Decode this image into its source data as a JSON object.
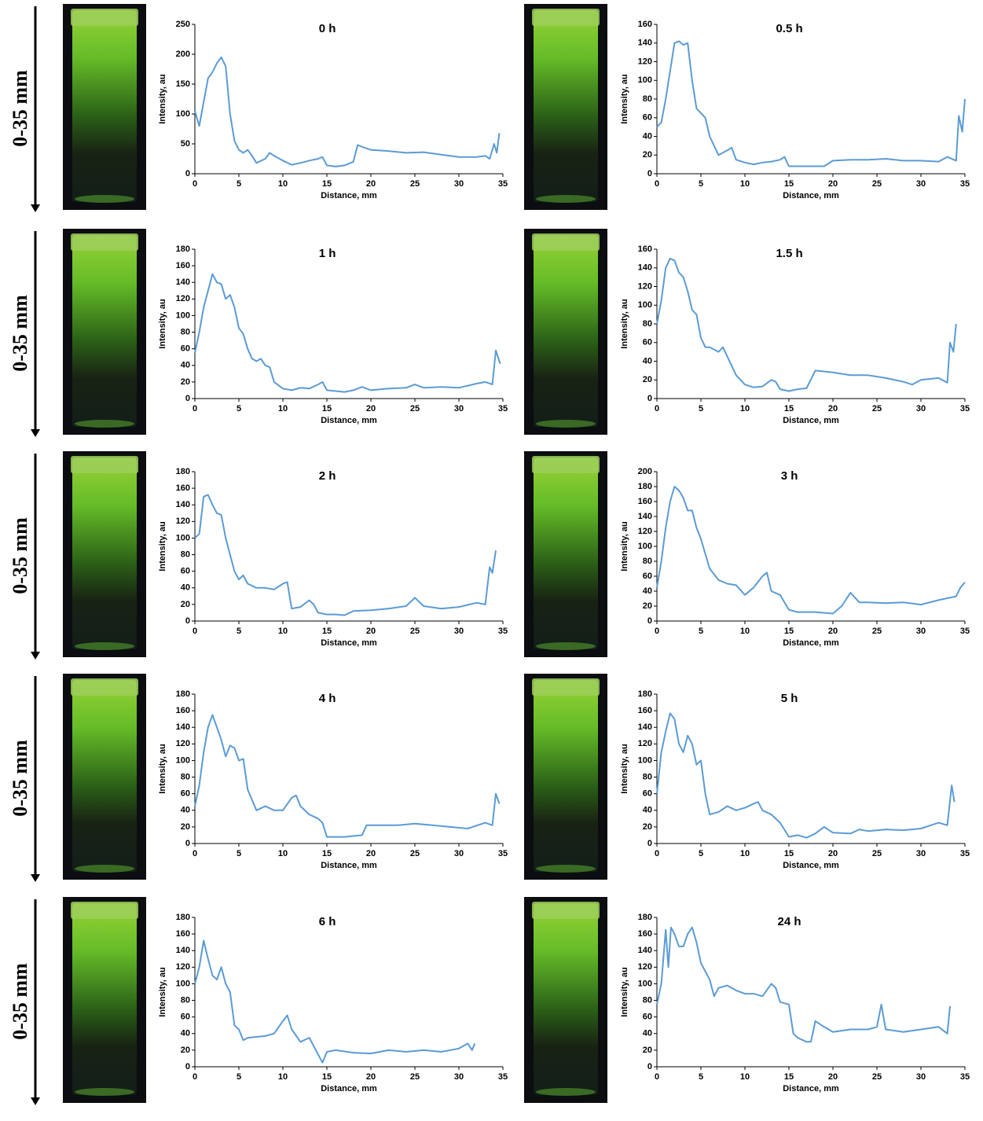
{
  "side_labels": [
    "0-35 mm",
    "0-35 mm",
    "0-35 mm",
    "0-35 mm",
    "0-35 mm"
  ],
  "chart_data": [
    {
      "type": "line",
      "title": "0 h",
      "xlabel": "Distance, mm",
      "ylabel": "Intensity, au",
      "color": "#5b9bd5",
      "xlim": [
        0,
        35
      ],
      "xticks": [
        0,
        5,
        10,
        15,
        20,
        25,
        30,
        35
      ],
      "ylim": [
        0,
        250
      ],
      "yticks": [
        0,
        50,
        100,
        150,
        200,
        250
      ],
      "x": [
        0,
        0.5,
        1,
        1.5,
        2,
        2.5,
        3,
        3.5,
        4,
        4.5,
        5,
        5.5,
        6,
        6.5,
        7,
        8,
        8.5,
        9,
        10,
        11,
        12,
        13,
        14,
        14.5,
        15,
        16,
        17,
        18,
        18.5,
        19,
        20,
        22,
        24,
        26,
        28,
        30,
        32,
        33,
        33.5,
        34,
        34.3,
        34.6
      ],
      "values": [
        105,
        80,
        120,
        160,
        170,
        185,
        195,
        180,
        100,
        55,
        40,
        35,
        40,
        30,
        18,
        25,
        35,
        30,
        22,
        15,
        18,
        22,
        25,
        28,
        14,
        12,
        14,
        20,
        48,
        45,
        40,
        38,
        35,
        36,
        32,
        28,
        28,
        30,
        25,
        50,
        35,
        68
      ]
    },
    {
      "type": "line",
      "title": "0.5 h",
      "xlabel": "Distance, mm",
      "ylabel": "Intensity, au",
      "color": "#5b9bd5",
      "xlim": [
        0,
        35
      ],
      "xticks": [
        0,
        5,
        10,
        15,
        20,
        25,
        30,
        35
      ],
      "ylim": [
        0,
        160
      ],
      "yticks": [
        0,
        20,
        40,
        60,
        80,
        100,
        120,
        140,
        160
      ],
      "x": [
        0,
        0.5,
        1,
        1.5,
        2,
        2.5,
        3,
        3.5,
        4,
        4.5,
        5,
        5.5,
        6,
        7,
        8,
        8.5,
        9,
        10,
        11,
        12,
        13,
        14,
        14.5,
        15,
        17,
        19,
        20,
        22,
        24,
        26,
        28,
        30,
        32,
        33,
        34,
        34.3,
        34.7,
        35
      ],
      "values": [
        50,
        55,
        80,
        110,
        140,
        142,
        138,
        140,
        100,
        70,
        65,
        60,
        40,
        20,
        25,
        28,
        15,
        12,
        10,
        12,
        13,
        15,
        18,
        8,
        8,
        8,
        14,
        15,
        15,
        16,
        14,
        14,
        13,
        18,
        14,
        62,
        45,
        80
      ]
    },
    {
      "type": "line",
      "title": "1 h",
      "xlabel": "Distance, mm",
      "ylabel": "Intensity, au",
      "color": "#5b9bd5",
      "xlim": [
        0,
        35
      ],
      "xticks": [
        0,
        5,
        10,
        15,
        20,
        25,
        30,
        35
      ],
      "ylim": [
        0,
        180
      ],
      "yticks": [
        0,
        20,
        40,
        60,
        80,
        100,
        120,
        140,
        160,
        180
      ],
      "x": [
        0,
        0.5,
        1,
        1.5,
        2,
        2.5,
        3,
        3.5,
        4,
        4.5,
        5,
        5.5,
        6,
        6.5,
        7,
        7.5,
        8,
        8.5,
        9,
        10,
        11,
        12,
        13,
        14,
        14.5,
        15,
        17,
        18,
        19,
        20,
        22,
        24,
        25,
        26,
        28,
        30,
        32,
        33,
        33.8,
        34.2,
        34.7
      ],
      "values": [
        55,
        80,
        110,
        130,
        150,
        140,
        138,
        120,
        125,
        110,
        85,
        78,
        60,
        48,
        45,
        48,
        40,
        38,
        20,
        12,
        10,
        13,
        12,
        17,
        20,
        10,
        8,
        10,
        14,
        10,
        12,
        13,
        17,
        13,
        14,
        13,
        18,
        20,
        17,
        58,
        42
      ]
    },
    {
      "type": "line",
      "title": "1.5 h",
      "xlabel": "Distance, mm",
      "ylabel": "Intensity, au",
      "color": "#5b9bd5",
      "xlim": [
        0,
        35
      ],
      "xticks": [
        0,
        5,
        10,
        15,
        20,
        25,
        30,
        35
      ],
      "ylim": [
        0,
        160
      ],
      "yticks": [
        0,
        20,
        40,
        60,
        80,
        100,
        120,
        140,
        160
      ],
      "x": [
        0,
        0.5,
        1,
        1.5,
        2,
        2.5,
        3,
        3.5,
        4,
        4.5,
        5,
        5.5,
        6,
        7,
        7.5,
        8,
        9,
        10,
        11,
        12,
        13,
        13.5,
        14,
        15,
        16,
        17,
        18,
        20,
        22,
        24,
        26,
        28,
        29,
        30,
        32,
        33,
        33.3,
        33.7,
        34
      ],
      "values": [
        80,
        105,
        140,
        150,
        148,
        135,
        130,
        115,
        95,
        90,
        65,
        55,
        55,
        50,
        55,
        45,
        25,
        15,
        12,
        13,
        20,
        18,
        10,
        8,
        10,
        11,
        30,
        28,
        25,
        25,
        22,
        18,
        15,
        20,
        22,
        17,
        60,
        50,
        80
      ]
    },
    {
      "type": "line",
      "title": "2 h",
      "xlabel": "Distance, mm",
      "ylabel": "Intensity, au",
      "color": "#5b9bd5",
      "xlim": [
        0,
        35
      ],
      "xticks": [
        0,
        5,
        10,
        15,
        20,
        25,
        30,
        35
      ],
      "ylim": [
        0,
        180
      ],
      "yticks": [
        0,
        20,
        40,
        60,
        80,
        100,
        120,
        140,
        160,
        180
      ],
      "x": [
        0,
        0.5,
        1,
        1.5,
        2,
        2.5,
        3,
        3.5,
        4,
        4.5,
        5,
        5.5,
        6,
        7,
        8,
        9,
        10,
        10.5,
        11,
        12,
        13,
        13.5,
        14,
        15,
        16,
        17,
        18,
        20,
        22,
        24,
        25,
        26,
        28,
        30,
        32,
        33,
        33.5,
        33.8,
        34.2
      ],
      "values": [
        100,
        105,
        150,
        152,
        140,
        130,
        128,
        100,
        80,
        60,
        50,
        55,
        45,
        40,
        40,
        38,
        45,
        47,
        15,
        17,
        25,
        20,
        10,
        8,
        8,
        7,
        12,
        13,
        15,
        18,
        28,
        18,
        15,
        17,
        22,
        20,
        65,
        58,
        85
      ]
    },
    {
      "type": "line",
      "title": "3 h",
      "xlabel": "Distance, mm",
      "ylabel": "Intensity, au",
      "color": "#5b9bd5",
      "xlim": [
        0,
        35
      ],
      "xticks": [
        0,
        5,
        10,
        15,
        20,
        25,
        30,
        35
      ],
      "ylim": [
        0,
        200
      ],
      "yticks": [
        0,
        20,
        40,
        60,
        80,
        100,
        120,
        140,
        160,
        180,
        200
      ],
      "x": [
        0,
        0.5,
        1,
        1.5,
        2,
        2.5,
        3,
        3.5,
        4,
        4.5,
        5,
        6,
        7,
        8,
        9,
        10,
        11,
        12,
        12.5,
        13,
        14,
        15,
        16,
        18,
        20,
        21,
        22,
        23,
        24,
        26,
        28,
        30,
        32,
        34,
        34.5,
        35
      ],
      "values": [
        45,
        80,
        125,
        160,
        180,
        175,
        165,
        148,
        148,
        125,
        110,
        70,
        55,
        50,
        48,
        35,
        45,
        60,
        65,
        40,
        35,
        15,
        12,
        12,
        10,
        20,
        38,
        25,
        25,
        24,
        25,
        22,
        28,
        33,
        45,
        52
      ]
    },
    {
      "type": "line",
      "title": "4 h",
      "xlabel": "Distance, mm",
      "ylabel": "Intensity, au",
      "color": "#5b9bd5",
      "xlim": [
        0,
        35
      ],
      "xticks": [
        0,
        5,
        10,
        15,
        20,
        25,
        30,
        35
      ],
      "ylim": [
        0,
        180
      ],
      "yticks": [
        0,
        20,
        40,
        60,
        80,
        100,
        120,
        140,
        160,
        180
      ],
      "x": [
        0,
        0.5,
        1,
        1.5,
        2,
        2.5,
        3,
        3.5,
        4,
        4.5,
        5,
        5.5,
        6,
        7,
        8,
        9,
        10,
        11,
        11.5,
        12,
        13,
        14,
        14.5,
        15,
        17,
        19,
        19.5,
        21,
        23,
        25,
        27,
        29,
        31,
        33,
        33.8,
        34.2,
        34.6
      ],
      "values": [
        45,
        70,
        110,
        140,
        155,
        140,
        125,
        105,
        118,
        115,
        100,
        102,
        65,
        40,
        45,
        40,
        40,
        55,
        58,
        45,
        35,
        30,
        25,
        8,
        8,
        10,
        22,
        22,
        22,
        24,
        22,
        20,
        18,
        25,
        22,
        60,
        48
      ]
    },
    {
      "type": "line",
      "title": "5 h",
      "xlabel": "Distance, mm",
      "ylabel": "Intensity, au",
      "color": "#5b9bd5",
      "xlim": [
        0,
        35
      ],
      "xticks": [
        0,
        5,
        10,
        15,
        20,
        25,
        30,
        35
      ],
      "ylim": [
        0,
        180
      ],
      "yticks": [
        0,
        20,
        40,
        60,
        80,
        100,
        120,
        140,
        160,
        180
      ],
      "x": [
        0,
        0.5,
        1,
        1.5,
        2,
        2.5,
        3,
        3.5,
        4,
        4.5,
        5,
        5.5,
        6,
        7,
        8,
        9,
        10,
        11,
        11.5,
        12,
        13,
        14,
        15,
        16,
        17,
        18,
        19,
        20,
        22,
        23,
        24,
        26,
        28,
        30,
        32,
        33,
        33.5,
        33.8
      ],
      "values": [
        60,
        110,
        135,
        157,
        150,
        120,
        110,
        130,
        120,
        95,
        100,
        60,
        35,
        38,
        45,
        40,
        43,
        48,
        50,
        40,
        35,
        25,
        8,
        10,
        7,
        12,
        20,
        13,
        12,
        17,
        15,
        17,
        16,
        18,
        25,
        22,
        70,
        50
      ]
    },
    {
      "type": "line",
      "title": "6 h",
      "xlabel": "Distance, mm",
      "ylabel": "Intensity, au",
      "color": "#5b9bd5",
      "xlim": [
        0,
        35
      ],
      "xticks": [
        0,
        5,
        10,
        15,
        20,
        25,
        30,
        35
      ],
      "ylim": [
        0,
        180
      ],
      "yticks": [
        0,
        20,
        40,
        60,
        80,
        100,
        120,
        140,
        160,
        180
      ],
      "x": [
        0,
        0.5,
        1,
        1.5,
        2,
        2.5,
        3,
        3.5,
        4,
        4.5,
        5,
        5.5,
        6,
        8,
        9,
        10,
        10.5,
        11,
        12,
        13,
        14,
        14.5,
        15,
        16,
        18,
        20,
        22,
        24,
        26,
        28,
        30,
        31,
        31.5,
        31.8
      ],
      "values": [
        100,
        120,
        152,
        130,
        110,
        105,
        120,
        100,
        90,
        50,
        45,
        32,
        35,
        37,
        40,
        55,
        62,
        45,
        30,
        35,
        15,
        5,
        18,
        20,
        17,
        16,
        20,
        18,
        20,
        18,
        22,
        28,
        20,
        28
      ]
    },
    {
      "type": "line",
      "title": "24 h",
      "xlabel": "Distance, mm",
      "ylabel": "Intensity, au",
      "color": "#5b9bd5",
      "xlim": [
        0,
        35
      ],
      "xticks": [
        0,
        5,
        10,
        15,
        20,
        25,
        30,
        35
      ],
      "ylim": [
        0,
        180
      ],
      "yticks": [
        0,
        20,
        40,
        60,
        80,
        100,
        120,
        140,
        160,
        180
      ],
      "x": [
        0,
        0.5,
        1,
        1.3,
        1.6,
        2,
        2.5,
        3,
        3.5,
        4,
        4.5,
        5,
        6,
        6.5,
        7,
        8,
        9,
        10,
        11,
        12,
        13,
        13.5,
        14,
        15,
        15.5,
        16,
        17,
        17.5,
        18,
        19,
        20,
        22,
        24,
        25,
        25.5,
        26,
        28,
        30,
        32,
        33,
        33.3
      ],
      "values": [
        75,
        100,
        165,
        120,
        168,
        160,
        145,
        145,
        160,
        168,
        150,
        125,
        105,
        85,
        95,
        98,
        92,
        88,
        88,
        85,
        100,
        95,
        78,
        75,
        40,
        35,
        30,
        30,
        55,
        48,
        42,
        45,
        45,
        48,
        75,
        45,
        42,
        45,
        48,
        40,
        73
      ]
    }
  ]
}
